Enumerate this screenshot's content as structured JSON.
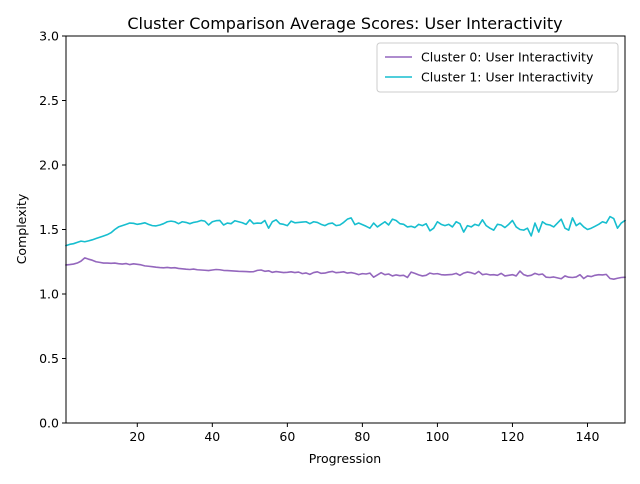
{
  "chart_data": {
    "type": "line",
    "title": "Cluster Comparison Average Scores: User Interactivity",
    "xlabel": "Progression",
    "ylabel": "Complexity",
    "xlim": [
      1,
      150
    ],
    "ylim": [
      0.0,
      3.0
    ],
    "x_ticks": [
      20,
      40,
      60,
      80,
      100,
      120,
      140
    ],
    "x_tick_labels": [
      "20",
      "40",
      "60",
      "80",
      "100",
      "120",
      "140"
    ],
    "y_ticks": [
      0.0,
      0.5,
      1.0,
      1.5,
      2.0,
      2.5,
      3.0
    ],
    "y_tick_labels": [
      "0.0",
      "0.5",
      "1.0",
      "1.5",
      "2.0",
      "2.5",
      "3.0"
    ],
    "grid": false,
    "legend_position": "top-right",
    "series": [
      {
        "name": "Cluster 0: User Interactivity",
        "color": "#9467bd",
        "x_start": 1,
        "values": [
          1.225,
          1.228,
          1.232,
          1.24,
          1.255,
          1.28,
          1.27,
          1.262,
          1.25,
          1.245,
          1.24,
          1.24,
          1.238,
          1.24,
          1.235,
          1.232,
          1.236,
          1.228,
          1.234,
          1.23,
          1.226,
          1.218,
          1.215,
          1.212,
          1.208,
          1.205,
          1.203,
          1.206,
          1.202,
          1.204,
          1.198,
          1.195,
          1.192,
          1.19,
          1.193,
          1.188,
          1.186,
          1.184,
          1.182,
          1.186,
          1.19,
          1.188,
          1.183,
          1.182,
          1.18,
          1.178,
          1.176,
          1.175,
          1.174,
          1.172,
          1.173,
          1.183,
          1.186,
          1.176,
          1.18,
          1.168,
          1.174,
          1.17,
          1.166,
          1.168,
          1.172,
          1.166,
          1.17,
          1.158,
          1.163,
          1.152,
          1.166,
          1.172,
          1.16,
          1.162,
          1.17,
          1.175,
          1.165,
          1.168,
          1.172,
          1.162,
          1.166,
          1.16,
          1.15,
          1.158,
          1.155,
          1.162,
          1.13,
          1.148,
          1.165,
          1.15,
          1.155,
          1.14,
          1.148,
          1.142,
          1.145,
          1.128,
          1.17,
          1.16,
          1.148,
          1.14,
          1.145,
          1.162,
          1.155,
          1.158,
          1.15,
          1.148,
          1.15,
          1.152,
          1.16,
          1.145,
          1.162,
          1.17,
          1.165,
          1.155,
          1.175,
          1.15,
          1.155,
          1.148,
          1.15,
          1.145,
          1.16,
          1.14,
          1.145,
          1.15,
          1.14,
          1.178,
          1.15,
          1.14,
          1.145,
          1.16,
          1.15,
          1.155,
          1.13,
          1.128,
          1.132,
          1.125,
          1.118,
          1.14,
          1.13,
          1.128,
          1.132,
          1.15,
          1.12,
          1.14,
          1.135,
          1.145,
          1.15,
          1.148,
          1.152,
          1.12,
          1.115,
          1.122,
          1.128,
          1.13
        ]
      },
      {
        "name": "Cluster 1: User Interactivity",
        "color": "#17becf",
        "x_start": 1,
        "values": [
          1.375,
          1.385,
          1.39,
          1.4,
          1.41,
          1.405,
          1.412,
          1.42,
          1.43,
          1.44,
          1.45,
          1.46,
          1.475,
          1.5,
          1.52,
          1.53,
          1.54,
          1.55,
          1.548,
          1.54,
          1.545,
          1.552,
          1.54,
          1.53,
          1.528,
          1.535,
          1.545,
          1.56,
          1.565,
          1.56,
          1.545,
          1.56,
          1.555,
          1.545,
          1.555,
          1.56,
          1.57,
          1.565,
          1.535,
          1.56,
          1.568,
          1.57,
          1.535,
          1.55,
          1.545,
          1.568,
          1.56,
          1.552,
          1.54,
          1.575,
          1.545,
          1.55,
          1.548,
          1.57,
          1.51,
          1.56,
          1.575,
          1.545,
          1.54,
          1.53,
          1.565,
          1.552,
          1.555,
          1.558,
          1.56,
          1.545,
          1.56,
          1.555,
          1.54,
          1.53,
          1.545,
          1.55,
          1.53,
          1.535,
          1.555,
          1.58,
          1.59,
          1.538,
          1.55,
          1.538,
          1.525,
          1.51,
          1.55,
          1.52,
          1.54,
          1.56,
          1.535,
          1.58,
          1.57,
          1.545,
          1.54,
          1.52,
          1.525,
          1.515,
          1.54,
          1.53,
          1.545,
          1.49,
          1.51,
          1.56,
          1.54,
          1.53,
          1.54,
          1.52,
          1.56,
          1.545,
          1.48,
          1.53,
          1.52,
          1.54,
          1.53,
          1.575,
          1.53,
          1.51,
          1.495,
          1.54,
          1.535,
          1.515,
          1.54,
          1.57,
          1.52,
          1.5,
          1.495,
          1.51,
          1.45,
          1.55,
          1.48,
          1.56,
          1.54,
          1.535,
          1.52,
          1.55,
          1.58,
          1.51,
          1.495,
          1.59,
          1.53,
          1.55,
          1.52,
          1.5,
          1.51,
          1.525,
          1.54,
          1.56,
          1.55,
          1.6,
          1.585,
          1.51,
          1.55,
          1.57
        ]
      }
    ]
  }
}
